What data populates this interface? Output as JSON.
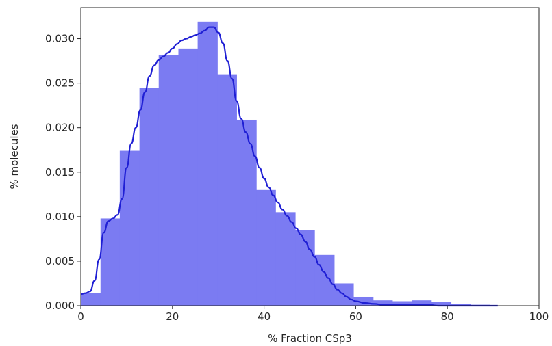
{
  "chart_data": {
    "type": "histogram",
    "title": "",
    "xlabel": "% Fraction CSp3",
    "ylabel": "% molecules",
    "xlim": [
      0,
      100
    ],
    "ylim": [
      0,
      0.0335
    ],
    "xticks": [
      0,
      20,
      40,
      60,
      80,
      100
    ],
    "yticks": [
      0.0,
      0.005,
      0.01,
      0.015,
      0.02,
      0.025,
      0.03
    ],
    "xtick_labels": [
      "0",
      "20",
      "40",
      "60",
      "80",
      "100"
    ],
    "ytick_labels": [
      "0.000",
      "0.005",
      "0.010",
      "0.015",
      "0.020",
      "0.025",
      "0.030"
    ],
    "grid": false,
    "legend": false,
    "bar_color": "#7b7bf2",
    "line_color": "#1f1fd4",
    "bins": [
      {
        "x0": 0.0,
        "x1": 4.3,
        "value": 0.0014
      },
      {
        "x0": 4.3,
        "x1": 8.5,
        "value": 0.0098
      },
      {
        "x0": 8.5,
        "x1": 12.8,
        "value": 0.0174
      },
      {
        "x0": 12.8,
        "x1": 17.0,
        "value": 0.0245
      },
      {
        "x0": 17.0,
        "x1": 21.3,
        "value": 0.0282
      },
      {
        "x0": 21.3,
        "x1": 25.5,
        "value": 0.0289
      },
      {
        "x0": 25.5,
        "x1": 29.8,
        "value": 0.0319
      },
      {
        "x0": 29.8,
        "x1": 34.0,
        "value": 0.026
      },
      {
        "x0": 34.0,
        "x1": 38.3,
        "value": 0.0209
      },
      {
        "x0": 38.3,
        "x1": 42.5,
        "value": 0.013
      },
      {
        "x0": 42.5,
        "x1": 46.8,
        "value": 0.0105
      },
      {
        "x0": 46.8,
        "x1": 51.0,
        "value": 0.0085
      },
      {
        "x0": 51.0,
        "x1": 55.3,
        "value": 0.0057
      },
      {
        "x0": 55.3,
        "x1": 59.5,
        "value": 0.0025
      },
      {
        "x0": 59.5,
        "x1": 63.8,
        "value": 0.001
      },
      {
        "x0": 63.8,
        "x1": 68.0,
        "value": 0.0006
      },
      {
        "x0": 68.0,
        "x1": 72.3,
        "value": 0.0005
      },
      {
        "x0": 72.3,
        "x1": 76.5,
        "value": 0.0006
      },
      {
        "x0": 76.5,
        "x1": 80.8,
        "value": 0.0004
      },
      {
        "x0": 80.8,
        "x1": 85.0,
        "value": 0.0002
      },
      {
        "x0": 85.0,
        "x1": 89.3,
        "value": 0.0001
      },
      {
        "x0": 89.3,
        "x1": 93.5,
        "value": 0.0
      }
    ],
    "kde": {
      "x": [
        0,
        1,
        2,
        3,
        4,
        5,
        6,
        7,
        8,
        9,
        10,
        11,
        12,
        13,
        14,
        15,
        16,
        17,
        18,
        19,
        20,
        21,
        22,
        23,
        24,
        25,
        26,
        27,
        28,
        29,
        30,
        31,
        32,
        33,
        34,
        35,
        36,
        37,
        38,
        39,
        40,
        41,
        42,
        43,
        44,
        45,
        46,
        47,
        48,
        49,
        50,
        51,
        52,
        53,
        54,
        55,
        56,
        57,
        58,
        59,
        60,
        62,
        64,
        66,
        68,
        70,
        72,
        74,
        76,
        78,
        80,
        84,
        88,
        91
      ],
      "y": [
        0.0013,
        0.0014,
        0.0016,
        0.0028,
        0.0052,
        0.0082,
        0.0095,
        0.0098,
        0.0102,
        0.012,
        0.0155,
        0.0182,
        0.02,
        0.022,
        0.024,
        0.0258,
        0.027,
        0.0276,
        0.028,
        0.0284,
        0.0289,
        0.0294,
        0.0298,
        0.03,
        0.0302,
        0.0304,
        0.0306,
        0.0309,
        0.0313,
        0.0313,
        0.0307,
        0.0295,
        0.0275,
        0.0255,
        0.023,
        0.021,
        0.0195,
        0.0182,
        0.0168,
        0.0155,
        0.0143,
        0.0133,
        0.0124,
        0.0116,
        0.0108,
        0.0101,
        0.0094,
        0.0087,
        0.008,
        0.0072,
        0.0063,
        0.0055,
        0.0046,
        0.0038,
        0.0031,
        0.0024,
        0.0018,
        0.0014,
        0.001,
        0.0007,
        0.0005,
        0.0003,
        0.0002,
        0.0001,
        0.0001,
        0.0001,
        0.0001,
        0.0001,
        0.0001,
        0.0,
        0.0,
        0.0,
        0.0,
        0.0
      ]
    }
  }
}
